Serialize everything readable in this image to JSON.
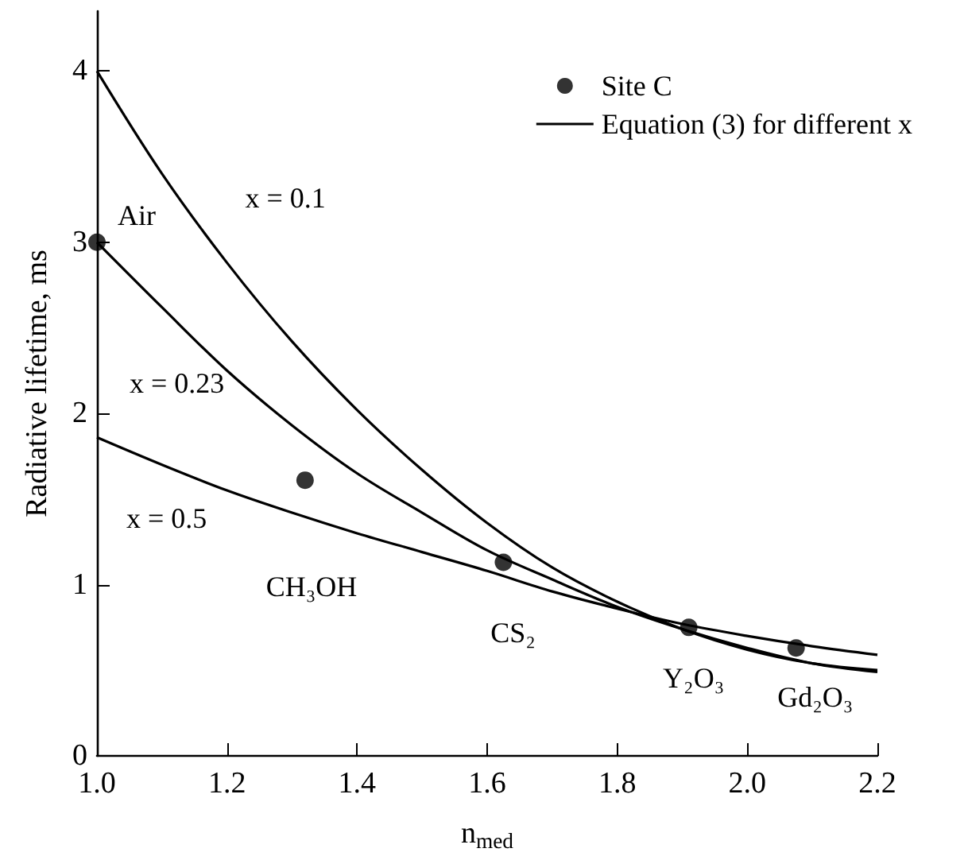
{
  "chart_data": {
    "type": "line",
    "xlabel": "n$_{med}$",
    "ylabel": "Radiative lifetime, ms",
    "xlim": [
      1.0,
      2.2
    ],
    "xticks": [
      {
        "value": 1.0,
        "label": "1.0"
      },
      {
        "value": 1.2,
        "label": "1.2"
      },
      {
        "value": 1.4,
        "label": "1.4"
      },
      {
        "value": 1.6,
        "label": "1.6"
      },
      {
        "value": 1.8,
        "label": "1.8"
      },
      {
        "value": 2.0,
        "label": "2.0"
      },
      {
        "value": 2.2,
        "label": "2.2"
      }
    ],
    "ylim": [
      0,
      4.35
    ],
    "yticks": [
      0,
      1,
      2,
      3,
      4
    ],
    "grid": false,
    "legend": "top right",
    "series": [
      {
        "name": "Site C",
        "type": "scatter",
        "marker": "circle",
        "color": "#000000",
        "x": [
          1.0,
          1.32,
          1.625,
          1.91,
          2.075
        ],
        "values": [
          3.0,
          1.61,
          1.13,
          0.75,
          0.63
        ]
      },
      {
        "name": "Equation (3) for different x",
        "marker": "none",
        "color": "#000000",
        "x": [
          1.0,
          1.1,
          1.2,
          1.3,
          1.4,
          1.5,
          1.6,
          1.7,
          1.8,
          1.9,
          2.0,
          2.1,
          2.2
        ],
        "values": [
          4.0,
          3.4,
          2.88,
          2.42,
          2.02,
          1.67,
          1.36,
          1.1,
          0.9,
          0.74,
          0.62,
          0.54,
          0.5
        ]
      },
      {
        "marker": "none",
        "color": "#000000",
        "x": [
          1.0,
          1.1,
          1.2,
          1.3,
          1.4,
          1.5,
          1.6,
          1.7,
          1.8,
          1.9,
          2.0,
          2.1,
          2.2
        ],
        "values": [
          3.0,
          2.62,
          2.25,
          1.93,
          1.65,
          1.42,
          1.2,
          1.03,
          0.87,
          0.74,
          0.63,
          0.54,
          0.49
        ]
      },
      {
        "marker": "none",
        "color": "#000000",
        "x": [
          1.0,
          1.1,
          1.2,
          1.3,
          1.4,
          1.5,
          1.6,
          1.7,
          1.8,
          1.9,
          2.0,
          2.1,
          2.2
        ],
        "values": [
          1.86,
          1.7,
          1.55,
          1.42,
          1.3,
          1.19,
          1.08,
          0.96,
          0.86,
          0.77,
          0.7,
          0.64,
          0.59
        ]
      }
    ],
    "annotations": [
      {
        "text": "Air",
        "x": 1.0,
        "y": 3.0
      },
      {
        "text": "x = 0.1",
        "x": 1.175,
        "y": 3.0
      },
      {
        "text": "x = 0.23",
        "x": 1.123,
        "y": 2.53
      },
      {
        "text": "x = 0.5",
        "x": 1.085,
        "y": 1.73
      },
      "CH₃OH",
      {
        "text": "CS₂",
        "x": 1.625,
        "y": 1.13
      },
      {
        "text": "Y₂O₃",
        "x": 1.91,
        "y": 0.75
      },
      {
        "text": "Gd₂O₃",
        "x": 2.075,
        "y": 0.63
      }
    ]
  }
}
